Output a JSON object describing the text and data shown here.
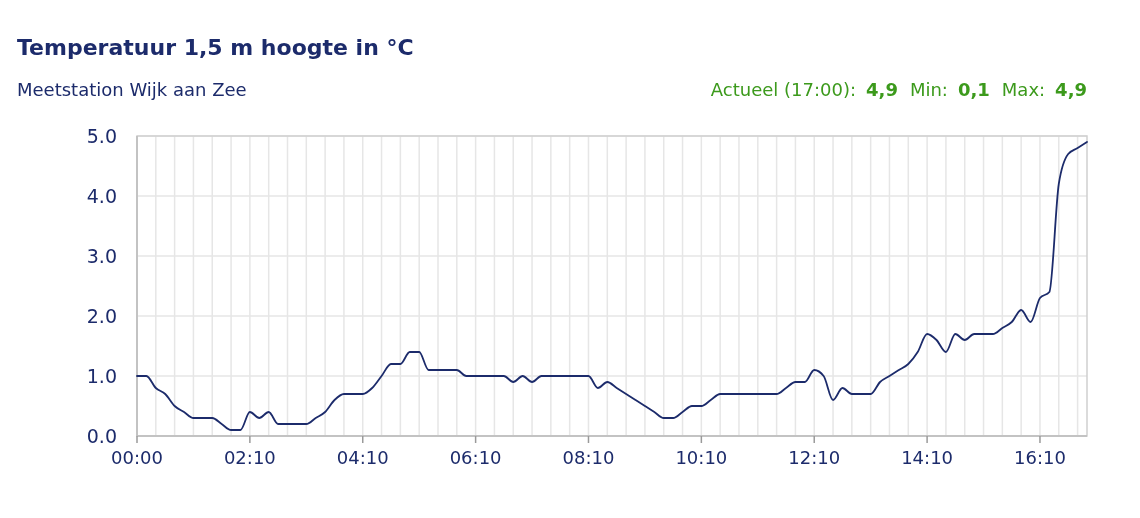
{
  "chart_data": {
    "type": "line",
    "title": "Temperatuur 1,5 m hoogte in °C",
    "subtitle": "Meetstation Wijk aan Zee",
    "annotations": [
      "Actueel (17:00):",
      "4,9",
      "Min:",
      "0,1",
      "Max:",
      "4,9"
    ],
    "categories": [
      "00:00",
      null,
      null,
      null,
      null,
      null,
      null,
      null,
      null,
      null,
      null,
      null,
      "02:10",
      null,
      null,
      null,
      null,
      null,
      null,
      null,
      null,
      null,
      null,
      null,
      "04:10",
      null,
      null,
      null,
      null,
      null,
      null,
      null,
      null,
      null,
      null,
      null,
      "06:10",
      null,
      null,
      null,
      null,
      null,
      null,
      null,
      null,
      null,
      null,
      null,
      "08:10",
      null,
      null,
      null,
      null,
      null,
      null,
      null,
      null,
      null,
      null,
      null,
      "10:10",
      null,
      null,
      null,
      null,
      null,
      null,
      null,
      null,
      null,
      null,
      null,
      "12:10",
      null,
      null,
      null,
      null,
      null,
      null,
      null,
      null,
      null,
      null,
      null,
      "14:10",
      null,
      null,
      null,
      null,
      null,
      null,
      null,
      null,
      null,
      null,
      null,
      "16:10",
      null,
      null,
      null,
      null,
      null
    ],
    "series": [
      {
        "color": "#1c2b6b",
        "values": [
          1.0,
          1.0,
          0.8,
          0.7,
          0.5,
          0.4,
          0.3,
          0.3,
          0.3,
          0.2,
          0.1,
          0.1,
          0.4,
          0.3,
          0.4,
          0.2,
          0.2,
          0.2,
          0.2,
          0.3,
          0.4,
          0.6,
          0.7,
          0.7,
          0.7,
          0.8,
          1.0,
          1.2,
          1.2,
          1.4,
          1.4,
          1.1,
          1.1,
          1.1,
          1.1,
          1.0,
          1.0,
          1.0,
          1.0,
          1.0,
          0.9,
          1.0,
          0.9,
          1.0,
          1.0,
          1.0,
          1.0,
          1.0,
          1.0,
          0.8,
          0.9,
          0.8,
          0.7,
          0.6,
          0.5,
          0.4,
          0.3,
          0.3,
          0.4,
          0.5,
          0.5,
          0.6,
          0.7,
          0.7,
          0.7,
          0.7,
          0.7,
          0.7,
          0.7,
          0.8,
          0.9,
          0.9,
          1.1,
          1.0,
          0.6,
          0.8,
          0.7,
          0.7,
          0.7,
          0.9,
          1.0,
          1.1,
          1.2,
          1.4,
          1.7,
          1.6,
          1.4,
          1.7,
          1.6,
          1.7,
          1.7,
          1.7,
          1.8,
          1.9,
          2.1,
          1.9,
          2.3,
          2.4,
          4.2,
          4.7,
          4.8,
          4.9
        ]
      }
    ],
    "ylim": [
      0,
      5
    ],
    "yticks": [
      {
        "value": 0,
        "label": "0.0"
      },
      {
        "value": 1,
        "label": "1.0"
      },
      {
        "value": 2,
        "label": "2.0"
      },
      {
        "value": 3,
        "label": "3.0"
      },
      {
        "value": 4,
        "label": "4.0"
      },
      {
        "value": 5,
        "label": "5.0"
      }
    ],
    "grid": true,
    "marker": "none",
    "line_style": "solid"
  }
}
